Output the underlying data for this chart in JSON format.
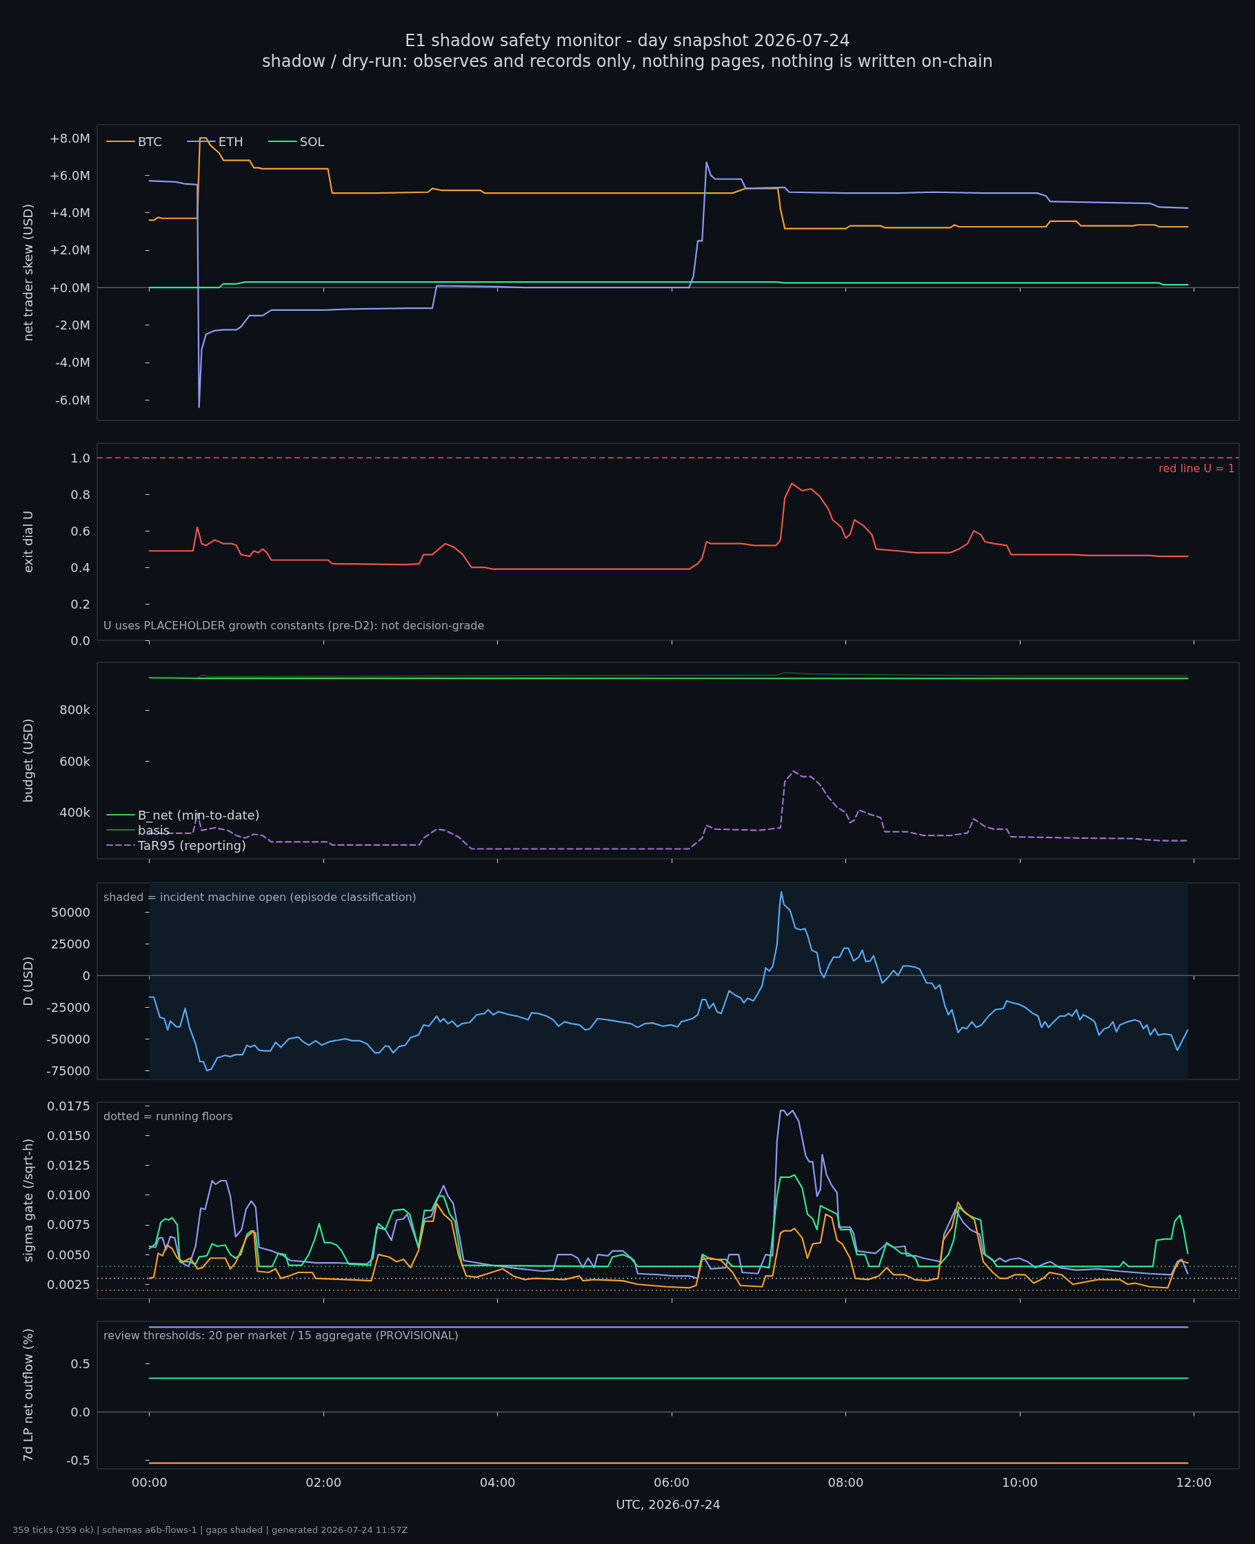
{
  "chart_data": [
    {
      "type": "line",
      "title": "E1 shadow safety monitor - day snapshot 2026-07-24",
      "subtitle": "shadow / dry-run: observes and records only, nothing pages, nothing is written on-chain",
      "ylabel": "net trader skew (USD)",
      "legend": "top left",
      "tick_labels": "y",
      "xlim": [
        -0.6,
        12.52
      ],
      "xticks": [
        0,
        2,
        4,
        6,
        8,
        10,
        12
      ],
      "ylim": [
        -7.1,
        8.7
      ],
      "yticks": [
        {
          "value": -6,
          "label": "-6.0M"
        },
        {
          "value": -4,
          "label": "-4.0M"
        },
        {
          "value": -2,
          "label": "-2.0M"
        },
        {
          "value": 0,
          "label": "+0.0M"
        },
        {
          "value": 2,
          "label": "+2.0M"
        },
        {
          "value": 4,
          "label": "+4.0M"
        },
        {
          "value": 6,
          "label": "+6.0M"
        },
        {
          "value": 8,
          "label": "+8.0M"
        }
      ],
      "ref_lines": [
        {
          "axis": "y",
          "value": 0,
          "color": "#555b66"
        }
      ],
      "series": [
        {
          "name": "BTC",
          "color": "#f5a030",
          "x": [
            0,
            0.05,
            0.1,
            0.15,
            0.55,
            0.58,
            0.65,
            0.7,
            0.8,
            0.85,
            1.15,
            1.2,
            1.25,
            1.3,
            2.05,
            2.1,
            2.6,
            3.2,
            3.25,
            3.35,
            3.8,
            3.85,
            6.65,
            6.7,
            6.85,
            7.22,
            7.25,
            7.3,
            8.0,
            8.05,
            8.4,
            8.45,
            9.2,
            9.25,
            9.3,
            10.3,
            10.35,
            10.65,
            10.7,
            11.3,
            11.35,
            11.55,
            11.6,
            11.93
          ],
          "values": [
            3.6,
            3.6,
            3.75,
            3.7,
            3.7,
            8.0,
            8.0,
            7.6,
            7.2,
            6.8,
            6.8,
            6.4,
            6.4,
            6.35,
            6.35,
            5.05,
            5.05,
            5.1,
            5.3,
            5.2,
            5.2,
            5.05,
            5.05,
            5.05,
            5.3,
            5.3,
            4.2,
            3.15,
            3.15,
            3.3,
            3.3,
            3.2,
            3.2,
            3.35,
            3.25,
            3.25,
            3.55,
            3.55,
            3.3,
            3.3,
            3.35,
            3.35,
            3.25,
            3.25
          ]
        },
        {
          "name": "ETH",
          "color": "#8c9cf0",
          "x": [
            0,
            0.3,
            0.4,
            0.55,
            0.57,
            0.6,
            0.65,
            0.75,
            0.85,
            1.0,
            1.05,
            1.15,
            1.3,
            1.4,
            2.0,
            2.3,
            3.0,
            3.25,
            3.3,
            4.0,
            4.3,
            6.2,
            6.25,
            6.3,
            6.35,
            6.4,
            6.45,
            6.5,
            6.8,
            6.85,
            7.3,
            7.35,
            8.0,
            8.6,
            9.0,
            9.6,
            10.2,
            10.3,
            10.35,
            11.5,
            11.6,
            11.93
          ],
          "values": [
            5.7,
            5.65,
            5.55,
            5.5,
            -6.4,
            -3.3,
            -2.5,
            -2.3,
            -2.25,
            -2.25,
            -2.1,
            -1.5,
            -1.5,
            -1.2,
            -1.2,
            -1.15,
            -1.1,
            -1.1,
            0.1,
            0.05,
            0.0,
            0.0,
            0.6,
            2.5,
            2.5,
            6.7,
            6.0,
            5.8,
            5.8,
            5.3,
            5.35,
            5.1,
            5.05,
            5.05,
            5.1,
            5.05,
            5.05,
            4.9,
            4.6,
            4.5,
            4.3,
            4.25
          ]
        },
        {
          "name": "SOL",
          "color": "#30e890",
          "x": [
            0,
            0.8,
            0.85,
            1.0,
            1.1,
            7.2,
            7.3,
            11.6,
            11.65,
            11.93
          ],
          "values": [
            0.0,
            0.0,
            0.2,
            0.2,
            0.3,
            0.3,
            0.25,
            0.25,
            0.15,
            0.15
          ]
        }
      ]
    },
    {
      "type": "line",
      "ylabel": "exit dial U",
      "tick_labels": "y",
      "xlim": [
        -0.6,
        12.52
      ],
      "xticks": [
        0,
        2,
        4,
        6,
        8,
        10,
        12
      ],
      "ylim": [
        0,
        1.08
      ],
      "yticks": [
        {
          "value": 0,
          "label": "0.0"
        },
        {
          "value": 0.2,
          "label": "0.2"
        },
        {
          "value": 0.4,
          "label": "0.4"
        },
        {
          "value": 0.6,
          "label": "0.6"
        },
        {
          "value": 0.8,
          "label": "0.8"
        },
        {
          "value": 1,
          "label": "1.0"
        }
      ],
      "ref_lines": [
        {
          "axis": "y",
          "value": 1,
          "label": "red line U = 1",
          "color": "#f0554a",
          "line_style": "dashed"
        }
      ],
      "annotations": [
        "U uses PLACEHOLDER growth constants (pre-D2): not decision-grade"
      ],
      "series": [
        {
          "color": "#f0554a",
          "x": [
            0,
            0.5,
            0.55,
            0.6,
            0.65,
            0.75,
            0.85,
            0.95,
            1.0,
            1.05,
            1.15,
            1.2,
            1.25,
            1.3,
            1.35,
            1.4,
            2.05,
            2.1,
            2.95,
            3.1,
            3.15,
            3.25,
            3.4,
            3.5,
            3.6,
            3.7,
            3.85,
            3.95,
            6.2,
            6.3,
            6.35,
            6.4,
            6.45,
            6.8,
            6.95,
            7.2,
            7.25,
            7.3,
            7.38,
            7.5,
            7.6,
            7.7,
            7.8,
            7.85,
            7.95,
            8.0,
            8.05,
            8.1,
            8.2,
            8.3,
            8.35,
            8.6,
            8.8,
            9.0,
            9.2,
            9.3,
            9.4,
            9.47,
            9.55,
            9.6,
            9.7,
            9.85,
            9.9,
            10.6,
            10.8,
            11.5,
            11.6,
            11.93
          ],
          "values": [
            0.49,
            0.49,
            0.62,
            0.53,
            0.52,
            0.55,
            0.53,
            0.53,
            0.52,
            0.47,
            0.46,
            0.49,
            0.48,
            0.5,
            0.48,
            0.44,
            0.44,
            0.42,
            0.415,
            0.42,
            0.47,
            0.47,
            0.53,
            0.51,
            0.47,
            0.4,
            0.4,
            0.39,
            0.39,
            0.42,
            0.45,
            0.54,
            0.53,
            0.53,
            0.52,
            0.52,
            0.55,
            0.78,
            0.86,
            0.82,
            0.83,
            0.79,
            0.72,
            0.66,
            0.62,
            0.56,
            0.58,
            0.66,
            0.63,
            0.58,
            0.5,
            0.49,
            0.48,
            0.48,
            0.48,
            0.5,
            0.53,
            0.6,
            0.58,
            0.54,
            0.53,
            0.52,
            0.47,
            0.47,
            0.465,
            0.465,
            0.46,
            0.46
          ]
        }
      ]
    },
    {
      "type": "line",
      "ylabel": "budget (USD)",
      "legend": "bottom left",
      "tick_labels": "y",
      "xlim": [
        -0.6,
        12.52
      ],
      "xticks": [
        0,
        2,
        4,
        6,
        8,
        10,
        12
      ],
      "ylim": [
        219000,
        985000
      ],
      "yticks": [
        {
          "value": 400000,
          "label": "400k"
        },
        {
          "value": 600000,
          "label": "600k"
        },
        {
          "value": 800000,
          "label": "800k"
        }
      ],
      "series": [
        {
          "name": "B_net (min-to-date)",
          "color": "#3ecf5a",
          "x": [
            0,
            0.6,
            11.93
          ],
          "values": [
            925000,
            923000,
            922000
          ]
        },
        {
          "name": "basis",
          "color": "#2a7a3a",
          "x": [
            0,
            0.55,
            0.6,
            0.7,
            3.5,
            7.2,
            7.3,
            7.6,
            9.0,
            10.0,
            11.93
          ],
          "values": [
            925000,
            925000,
            935000,
            930000,
            932000,
            935000,
            945000,
            940000,
            935000,
            932000,
            932000
          ]
        },
        {
          "name": "TaR95 (reporting)",
          "color": "#a070d0",
          "line_style": "dashed",
          "x": [
            0,
            0.5,
            0.55,
            0.6,
            0.75,
            0.9,
            1.0,
            1.1,
            1.2,
            1.3,
            1.4,
            2.05,
            2.1,
            3.1,
            3.15,
            3.3,
            3.4,
            3.55,
            3.7,
            6.2,
            6.35,
            6.4,
            6.5,
            7.0,
            7.25,
            7.3,
            7.4,
            7.5,
            7.6,
            7.7,
            7.8,
            7.9,
            8.0,
            8.05,
            8.1,
            8.15,
            8.3,
            8.4,
            8.45,
            8.7,
            8.9,
            9.2,
            9.4,
            9.47,
            9.6,
            9.7,
            9.85,
            9.9,
            10.7,
            11.3,
            11.6,
            11.93
          ],
          "values": [
            319000,
            319000,
            396000,
            330000,
            340000,
            330000,
            310000,
            300000,
            315000,
            310000,
            285000,
            285000,
            273000,
            273000,
            300000,
            335000,
            330000,
            305000,
            258000,
            258000,
            300000,
            350000,
            335000,
            330000,
            340000,
            520000,
            561000,
            540000,
            540000,
            510000,
            460000,
            420000,
            400000,
            360000,
            370000,
            410000,
            390000,
            380000,
            325000,
            325000,
            310000,
            310000,
            320000,
            375000,
            345000,
            335000,
            335000,
            305000,
            300000,
            298000,
            290000,
            290000
          ]
        }
      ]
    },
    {
      "type": "line",
      "ylabel": "D (USD)",
      "tick_labels": "y",
      "xlim": [
        -0.6,
        12.52
      ],
      "xticks": [
        0,
        2,
        4,
        6,
        8,
        10,
        12
      ],
      "ylim": [
        -82000,
        73000
      ],
      "yticks": [
        -75000,
        -50000,
        -25000,
        0,
        25000,
        50000
      ],
      "ref_lines": [
        {
          "axis": "y",
          "value": 0,
          "color": "#555b66"
        }
      ],
      "bands": [
        {
          "axis": "x",
          "from": 0,
          "to": 11.93,
          "color": "#0f1b26"
        }
      ],
      "annotations": [
        "shaded = incident machine open (episode classification)"
      ],
      "series": [
        {
          "color": "#5aa8f0",
          "x": [
            0,
            0.05,
            0.12,
            0.17,
            0.21,
            0.24,
            0.31,
            0.35,
            0.41,
            0.46,
            0.53,
            0.58,
            0.62,
            0.66,
            0.71,
            0.78,
            0.87,
            0.93,
            0.99,
            1.07,
            1.12,
            1.16,
            1.21,
            1.26,
            1.33,
            1.39,
            1.45,
            1.51,
            1.6,
            1.71,
            1.76,
            1.83,
            1.91,
            1.98,
            2.08,
            2.17,
            2.25,
            2.33,
            2.42,
            2.5,
            2.59,
            2.64,
            2.71,
            2.75,
            2.8,
            2.87,
            2.94,
            3.0,
            3.09,
            3.15,
            3.21,
            3.3,
            3.34,
            3.38,
            3.43,
            3.48,
            3.54,
            3.59,
            3.68,
            3.76,
            3.85,
            3.89,
            3.95,
            4.01,
            4.14,
            4.22,
            4.31,
            4.35,
            4.39,
            4.47,
            4.56,
            4.64,
            4.7,
            4.77,
            4.85,
            4.94,
            5.01,
            5.06,
            5.15,
            5.27,
            5.4,
            5.53,
            5.61,
            5.69,
            5.78,
            5.9,
            5.99,
            6.07,
            6.11,
            6.24,
            6.3,
            6.35,
            6.39,
            6.43,
            6.48,
            6.52,
            6.57,
            6.62,
            6.66,
            6.73,
            6.79,
            6.83,
            6.87,
            6.94,
            6.98,
            7.04,
            7.08,
            7.12,
            7.16,
            7.21,
            7.24,
            7.26,
            7.29,
            7.36,
            7.42,
            7.48,
            7.53,
            7.56,
            7.61,
            7.67,
            7.71,
            7.75,
            7.81,
            7.86,
            7.93,
            7.98,
            8.03,
            8.09,
            8.15,
            8.19,
            8.23,
            8.28,
            8.32,
            8.42,
            8.48,
            8.55,
            8.6,
            8.66,
            8.72,
            8.8,
            8.85,
            8.93,
            8.99,
            9.03,
            9.08,
            9.14,
            9.18,
            9.22,
            9.29,
            9.34,
            9.39,
            9.45,
            9.5,
            9.56,
            9.64,
            9.72,
            9.81,
            9.85,
            9.91,
            9.98,
            10.06,
            10.14,
            10.21,
            10.25,
            10.29,
            10.33,
            10.39,
            10.46,
            10.52,
            10.56,
            10.6,
            10.65,
            10.69,
            10.73,
            10.81,
            10.86,
            10.91,
            10.97,
            11.02,
            11.07,
            11.11,
            11.15,
            11.24,
            11.32,
            11.38,
            11.42,
            11.46,
            11.5,
            11.55,
            11.59,
            11.66,
            11.74,
            11.81,
            11.87,
            11.93
          ],
          "values": [
            -17000,
            -17000,
            -33000,
            -34000,
            -43000,
            -36000,
            -40500,
            -40500,
            -26000,
            -41000,
            -54000,
            -68000,
            -68000,
            -75000,
            -74000,
            -65000,
            -63000,
            -64000,
            -62500,
            -62500,
            -55000,
            -56500,
            -55000,
            -59000,
            -59500,
            -59500,
            -52700,
            -56700,
            -50000,
            -48600,
            -52000,
            -55000,
            -51500,
            -55000,
            -52000,
            -51000,
            -50000,
            -51500,
            -51500,
            -54000,
            -61000,
            -61000,
            -55500,
            -56000,
            -61000,
            -56000,
            -55000,
            -49000,
            -47000,
            -39000,
            -40000,
            -32000,
            -36500,
            -34000,
            -38000,
            -36000,
            -40500,
            -38000,
            -37000,
            -31000,
            -30000,
            -27000,
            -31000,
            -28500,
            -31000,
            -32000,
            -34000,
            -35000,
            -29500,
            -30000,
            -32000,
            -35000,
            -40000,
            -36500,
            -38000,
            -39000,
            -43000,
            -42000,
            -34000,
            -35000,
            -36500,
            -38000,
            -41000,
            -38000,
            -37500,
            -40000,
            -39000,
            -40500,
            -36500,
            -34000,
            -31000,
            -19000,
            -19000,
            -26000,
            -22000,
            -28500,
            -30000,
            -20000,
            -12000,
            -15500,
            -17500,
            -21500,
            -18000,
            -20000,
            -15500,
            -8000,
            6000,
            3500,
            7000,
            24000,
            54000,
            66000,
            56000,
            51500,
            37500,
            36000,
            37000,
            32000,
            20000,
            18000,
            3000,
            -1700,
            8500,
            14500,
            14500,
            21500,
            21500,
            11500,
            14500,
            20000,
            11000,
            11500,
            15500,
            -6000,
            -2000,
            4000,
            0,
            7500,
            7500,
            6500,
            5000,
            -6000,
            -6000,
            -10500,
            -7500,
            -24000,
            -31000,
            -27000,
            -45000,
            -41000,
            -42000,
            -36500,
            -41000,
            -39000,
            -32000,
            -27000,
            -26000,
            -20000,
            -21500,
            -22500,
            -25000,
            -29500,
            -32000,
            -41000,
            -36500,
            -41000,
            -36500,
            -32000,
            -32000,
            -30000,
            -32000,
            -27000,
            -35000,
            -31000,
            -34000,
            -36500,
            -47000,
            -42000,
            -41000,
            -36500,
            -44500,
            -39000,
            -36500,
            -35000,
            -36500,
            -42000,
            -39000,
            -47000,
            -42000,
            -47000,
            -46000,
            -47000,
            -59000,
            -51000,
            -43000
          ]
        }
      ]
    },
    {
      "type": "line",
      "ylabel": "sigma gate (/sqrt-h)",
      "tick_labels": "y",
      "xlim": [
        -0.6,
        12.52
      ],
      "xticks": [
        0,
        2,
        4,
        6,
        8,
        10,
        12
      ],
      "ylim": [
        0.0013,
        0.0178
      ],
      "yticks": [
        0.0025,
        {
          "value": 0.005,
          "label": "0.0050"
        },
        0.0075,
        {
          "value": 0.01,
          "label": "0.0100"
        },
        0.0125,
        {
          "value": 0.015,
          "label": "0.0150"
        },
        0.0175
      ],
      "ref_lines": [
        {
          "axis": "y",
          "value": 0.004,
          "color": "#2e9c5a",
          "line_style": "dotted"
        },
        {
          "axis": "y",
          "value": 0.003,
          "color": "#9a9ea8",
          "line_style": "dotted"
        },
        {
          "axis": "y",
          "value": 0.002,
          "color": "#b07830",
          "line_style": "dotted"
        }
      ],
      "annotations": [
        "dotted = running floors"
      ],
      "series": [
        {
          "color": "#8c9cf0",
          "x": [
            0,
            0.07,
            0.11,
            0.15,
            0.19,
            0.24,
            0.29,
            0.35,
            0.45,
            0.53,
            0.59,
            0.64,
            0.72,
            0.76,
            0.82,
            0.88,
            0.93,
            0.99,
            1.06,
            1.11,
            1.17,
            1.22,
            1.26,
            1.41,
            1.54,
            1.62,
            1.79,
            1.91,
            2.17,
            2.5,
            2.57,
            2.61,
            2.71,
            2.78,
            2.84,
            2.92,
            2.96,
            3.05,
            3.09,
            3.16,
            3.24,
            3.3,
            3.38,
            3.43,
            3.49,
            3.57,
            3.61,
            3.93,
            4.27,
            4.52,
            4.64,
            4.69,
            4.85,
            4.92,
            4.98,
            5.04,
            5.11,
            5.15,
            5.27,
            5.32,
            5.44,
            5.57,
            5.61,
            5.86,
            6.02,
            6.2,
            6.3,
            6.35,
            6.45,
            6.62,
            6.66,
            6.77,
            6.81,
            6.99,
            7.08,
            7.16,
            7.21,
            7.25,
            7.29,
            7.33,
            7.39,
            7.46,
            7.54,
            7.58,
            7.62,
            7.67,
            7.71,
            7.73,
            7.78,
            7.84,
            7.9,
            7.92,
            8.05,
            8.09,
            8.13,
            8.34,
            8.42,
            8.47,
            8.55,
            8.68,
            8.7,
            8.8,
            8.89,
            9.09,
            9.13,
            9.26,
            9.35,
            9.43,
            9.54,
            9.58,
            9.71,
            9.77,
            9.83,
            9.89,
            9.99,
            10.09,
            10.18,
            10.27,
            10.35,
            10.46,
            10.65,
            10.9,
            11.15,
            11.49,
            11.74,
            11.81,
            11.86,
            11.93
          ],
          "values": [
            0.0057,
            0.0056,
            0.0064,
            0.0064,
            0.0054,
            0.0065,
            0.0064,
            0.0044,
            0.004,
            0.0057,
            0.0089,
            0.0088,
            0.0112,
            0.0109,
            0.0112,
            0.0112,
            0.0099,
            0.0065,
            0.0071,
            0.0088,
            0.0095,
            0.009,
            0.0056,
            0.0053,
            0.0049,
            0.0045,
            0.0044,
            0.0043,
            0.0043,
            0.0042,
            0.0047,
            0.0073,
            0.0071,
            0.0062,
            0.0079,
            0.008,
            0.0084,
            0.0065,
            0.0056,
            0.008,
            0.0082,
            0.0095,
            0.0108,
            0.0099,
            0.0093,
            0.0062,
            0.0045,
            0.0041,
            0.0038,
            0.0036,
            0.0037,
            0.005,
            0.005,
            0.0047,
            0.0039,
            0.0047,
            0.0039,
            0.005,
            0.0049,
            0.0053,
            0.0053,
            0.0045,
            0.0034,
            0.0033,
            0.0032,
            0.0032,
            0.003,
            0.005,
            0.0038,
            0.0039,
            0.005,
            0.005,
            0.0035,
            0.0034,
            0.005,
            0.0049,
            0.0145,
            0.0171,
            0.0171,
            0.0167,
            0.0171,
            0.0162,
            0.0133,
            0.0128,
            0.0128,
            0.0099,
            0.0105,
            0.0134,
            0.0117,
            0.0108,
            0.0102,
            0.0073,
            0.0073,
            0.0068,
            0.0053,
            0.0051,
            0.0056,
            0.0059,
            0.0056,
            0.0057,
            0.0049,
            0.0049,
            0.0047,
            0.0044,
            0.0067,
            0.0088,
            0.0077,
            0.0071,
            0.0067,
            0.0051,
            0.0044,
            0.0047,
            0.0044,
            0.0046,
            0.0047,
            0.0044,
            0.0039,
            0.0042,
            0.0044,
            0.0039,
            0.0037,
            0.0038,
            0.0036,
            0.0034,
            0.0033,
            0.0044,
            0.0046,
            0.0034
          ]
        },
        {
          "color": "#30e890",
          "x": [
            0,
            0.07,
            0.13,
            0.18,
            0.22,
            0.26,
            0.32,
            0.35,
            0.45,
            0.53,
            0.57,
            0.66,
            0.72,
            0.78,
            0.87,
            0.93,
            0.99,
            1.05,
            1.12,
            1.17,
            1.22,
            1.26,
            1.41,
            1.48,
            1.56,
            1.6,
            1.75,
            1.83,
            1.9,
            1.95,
            2.01,
            2.08,
            2.15,
            2.21,
            2.29,
            2.54,
            2.59,
            2.63,
            2.71,
            2.8,
            2.92,
            2.99,
            3.05,
            3.09,
            3.16,
            3.24,
            3.32,
            3.38,
            3.45,
            3.51,
            3.59,
            5.27,
            5.32,
            5.44,
            5.53,
            5.61,
            6.32,
            6.36,
            6.45,
            6.62,
            6.7,
            7.04,
            7.12,
            7.21,
            7.25,
            7.36,
            7.41,
            7.5,
            7.56,
            7.62,
            7.67,
            7.71,
            7.79,
            7.9,
            7.94,
            8.05,
            8.13,
            8.22,
            8.27,
            8.38,
            8.47,
            8.55,
            8.64,
            8.72,
            8.8,
            8.84,
            9.06,
            9.18,
            9.24,
            9.3,
            9.39,
            9.47,
            9.55,
            9.6,
            9.68,
            9.74,
            11.15,
            11.19,
            11.25,
            11.53,
            11.57,
            11.66,
            11.74,
            11.78,
            11.84,
            11.88,
            11.93
          ],
          "values": [
            0.0055,
            0.0059,
            0.0077,
            0.008,
            0.0079,
            0.0081,
            0.0075,
            0.0044,
            0.0044,
            0.0042,
            0.0048,
            0.0049,
            0.0059,
            0.0057,
            0.0058,
            0.005,
            0.0047,
            0.005,
            0.0067,
            0.007,
            0.0068,
            0.004,
            0.004,
            0.0051,
            0.005,
            0.0041,
            0.0041,
            0.005,
            0.0063,
            0.0076,
            0.006,
            0.006,
            0.0058,
            0.0053,
            0.0042,
            0.0041,
            0.0063,
            0.0076,
            0.0071,
            0.0087,
            0.0088,
            0.0084,
            0.0067,
            0.0056,
            0.0087,
            0.0087,
            0.0099,
            0.0099,
            0.0084,
            0.0078,
            0.0041,
            0.004,
            0.0048,
            0.005,
            0.0047,
            0.004,
            0.004,
            0.005,
            0.0046,
            0.0046,
            0.004,
            0.004,
            0.0039,
            0.0099,
            0.0115,
            0.0115,
            0.0117,
            0.0106,
            0.0084,
            0.008,
            0.0071,
            0.0091,
            0.0088,
            0.0084,
            0.0071,
            0.0071,
            0.005,
            0.005,
            0.004,
            0.004,
            0.006,
            0.0056,
            0.0051,
            0.0051,
            0.0047,
            0.004,
            0.004,
            0.005,
            0.0062,
            0.009,
            0.0084,
            0.0081,
            0.0079,
            0.005,
            0.0046,
            0.004,
            0.004,
            0.0044,
            0.004,
            0.004,
            0.0062,
            0.0063,
            0.0063,
            0.0078,
            0.0083,
            0.0071,
            0.0051
          ]
        },
        {
          "color": "#f5a030",
          "x": [
            0,
            0.05,
            0.1,
            0.15,
            0.2,
            0.26,
            0.32,
            0.39,
            0.47,
            0.55,
            0.61,
            0.7,
            0.87,
            0.93,
            0.99,
            1.12,
            1.2,
            1.24,
            1.37,
            1.45,
            1.51,
            1.6,
            1.71,
            1.87,
            1.91,
            2.25,
            2.55,
            2.63,
            2.75,
            2.84,
            2.92,
            3.0,
            3.09,
            3.16,
            3.26,
            3.3,
            3.38,
            3.47,
            3.55,
            3.64,
            3.76,
            3.93,
            4.06,
            4.18,
            4.31,
            4.43,
            4.77,
            4.94,
            4.98,
            5.1,
            5.44,
            5.61,
            5.94,
            6.2,
            6.28,
            6.35,
            6.45,
            6.57,
            6.7,
            6.79,
            7.04,
            7.08,
            7.16,
            7.25,
            7.29,
            7.37,
            7.41,
            7.5,
            7.56,
            7.62,
            7.71,
            7.77,
            7.84,
            7.9,
            7.96,
            8.05,
            8.11,
            8.26,
            8.38,
            8.47,
            8.55,
            8.68,
            8.79,
            8.93,
            9.06,
            9.12,
            9.22,
            9.29,
            9.35,
            9.48,
            9.58,
            9.69,
            9.77,
            9.85,
            9.94,
            10.06,
            10.16,
            10.27,
            10.34,
            10.48,
            10.61,
            10.9,
            11.15,
            11.24,
            11.32,
            11.49,
            11.7,
            11.78,
            11.84,
            11.93
          ],
          "values": [
            0.003,
            0.0031,
            0.0051,
            0.0049,
            0.0058,
            0.0055,
            0.0047,
            0.0044,
            0.0047,
            0.0038,
            0.0039,
            0.0047,
            0.0047,
            0.0038,
            0.0043,
            0.0065,
            0.007,
            0.0036,
            0.0035,
            0.0038,
            0.003,
            0.0032,
            0.0035,
            0.0035,
            0.003,
            0.0029,
            0.0028,
            0.005,
            0.0048,
            0.0044,
            0.0046,
            0.0039,
            0.0053,
            0.0078,
            0.0078,
            0.0093,
            0.0084,
            0.0078,
            0.005,
            0.0032,
            0.0031,
            0.0035,
            0.0038,
            0.0032,
            0.0029,
            0.003,
            0.0029,
            0.0032,
            0.0028,
            0.0029,
            0.0028,
            0.0025,
            0.0023,
            0.0022,
            0.0024,
            0.0046,
            0.0047,
            0.0045,
            0.0035,
            0.0024,
            0.0023,
            0.0032,
            0.0032,
            0.0068,
            0.007,
            0.007,
            0.0072,
            0.0064,
            0.0047,
            0.0059,
            0.006,
            0.0084,
            0.0081,
            0.0062,
            0.0059,
            0.0047,
            0.003,
            0.0029,
            0.0032,
            0.0039,
            0.0033,
            0.0033,
            0.0029,
            0.0028,
            0.003,
            0.0062,
            0.0073,
            0.0094,
            0.0087,
            0.0079,
            0.0044,
            0.0035,
            0.003,
            0.003,
            0.0033,
            0.0033,
            0.0026,
            0.003,
            0.0035,
            0.0033,
            0.0025,
            0.0029,
            0.0029,
            0.0025,
            0.0026,
            0.0023,
            0.0022,
            0.0038,
            0.0045,
            0.0043
          ]
        }
      ]
    },
    {
      "type": "line",
      "ylabel": "7d LP net outflow (%)",
      "xlabel": "UTC, 2026-07-24",
      "xlim": [
        -0.6,
        12.52
      ],
      "xticks": [
        {
          "value": 0,
          "label": "00:00"
        },
        {
          "value": 2,
          "label": "02:00"
        },
        {
          "value": 4,
          "label": "04:00"
        },
        {
          "value": 6,
          "label": "06:00"
        },
        {
          "value": 8,
          "label": "08:00"
        },
        {
          "value": 10,
          "label": "10:00"
        },
        {
          "value": 12,
          "label": "12:00"
        }
      ],
      "ylim": [
        -0.59,
        0.94
      ],
      "yticks": [
        -0.5,
        {
          "value": 0,
          "label": "0.0"
        },
        0.5
      ],
      "ref_lines": [
        {
          "axis": "y",
          "value": 0,
          "color": "#555b66"
        }
      ],
      "annotations": [
        "review thresholds: 20 per market / 15 aggregate (PROVISIONAL)",
        "359 ticks (359 ok) | schemas a6b-flows-1 | gaps shaded | generated 2026-07-24 11:57Z"
      ],
      "series": [
        {
          "color": "#8c9cf0",
          "x": [
            0,
            11.93
          ],
          "values": [
            0.88,
            0.88
          ]
        },
        {
          "color": "#30e890",
          "x": [
            0,
            11.93
          ],
          "values": [
            0.35,
            0.35
          ]
        },
        {
          "color": "#f5a030",
          "x": [
            0,
            11.93
          ],
          "values": [
            -0.53,
            -0.53
          ]
        }
      ]
    }
  ]
}
